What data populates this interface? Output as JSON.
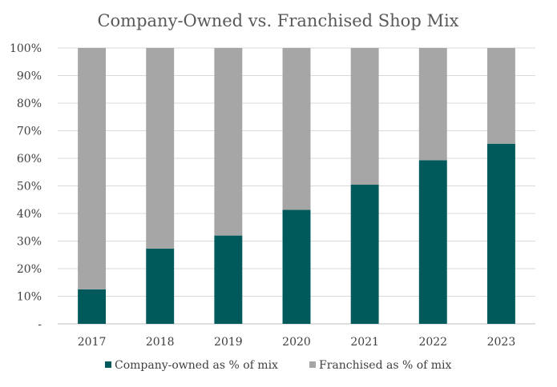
{
  "chart_data": {
    "type": "bar",
    "stacked": true,
    "title": "Company-Owned vs. Franchised Shop Mix",
    "xlabel": "",
    "ylabel": "",
    "categories": [
      "2017",
      "2018",
      "2019",
      "2020",
      "2021",
      "2022",
      "2023"
    ],
    "series": [
      {
        "name": "Company-owned as % of mix",
        "color": "#005a5b",
        "values": [
          12.5,
          27.3,
          32.0,
          41.3,
          50.5,
          59.3,
          65.3
        ]
      },
      {
        "name": "Franchised as % of mix",
        "color": "#a6a6a6",
        "values": [
          87.5,
          72.7,
          68.0,
          58.7,
          49.5,
          40.7,
          34.7
        ]
      }
    ],
    "ylim": [
      0,
      100
    ],
    "yticks": [
      0,
      10,
      20,
      30,
      40,
      50,
      60,
      70,
      80,
      90,
      100
    ],
    "ytick_labels": [
      "-",
      "10%",
      "20%",
      "30%",
      "40%",
      "50%",
      "60%",
      "70%",
      "80%",
      "90%",
      "100%"
    ],
    "grid": true,
    "legend_position": "bottom"
  }
}
